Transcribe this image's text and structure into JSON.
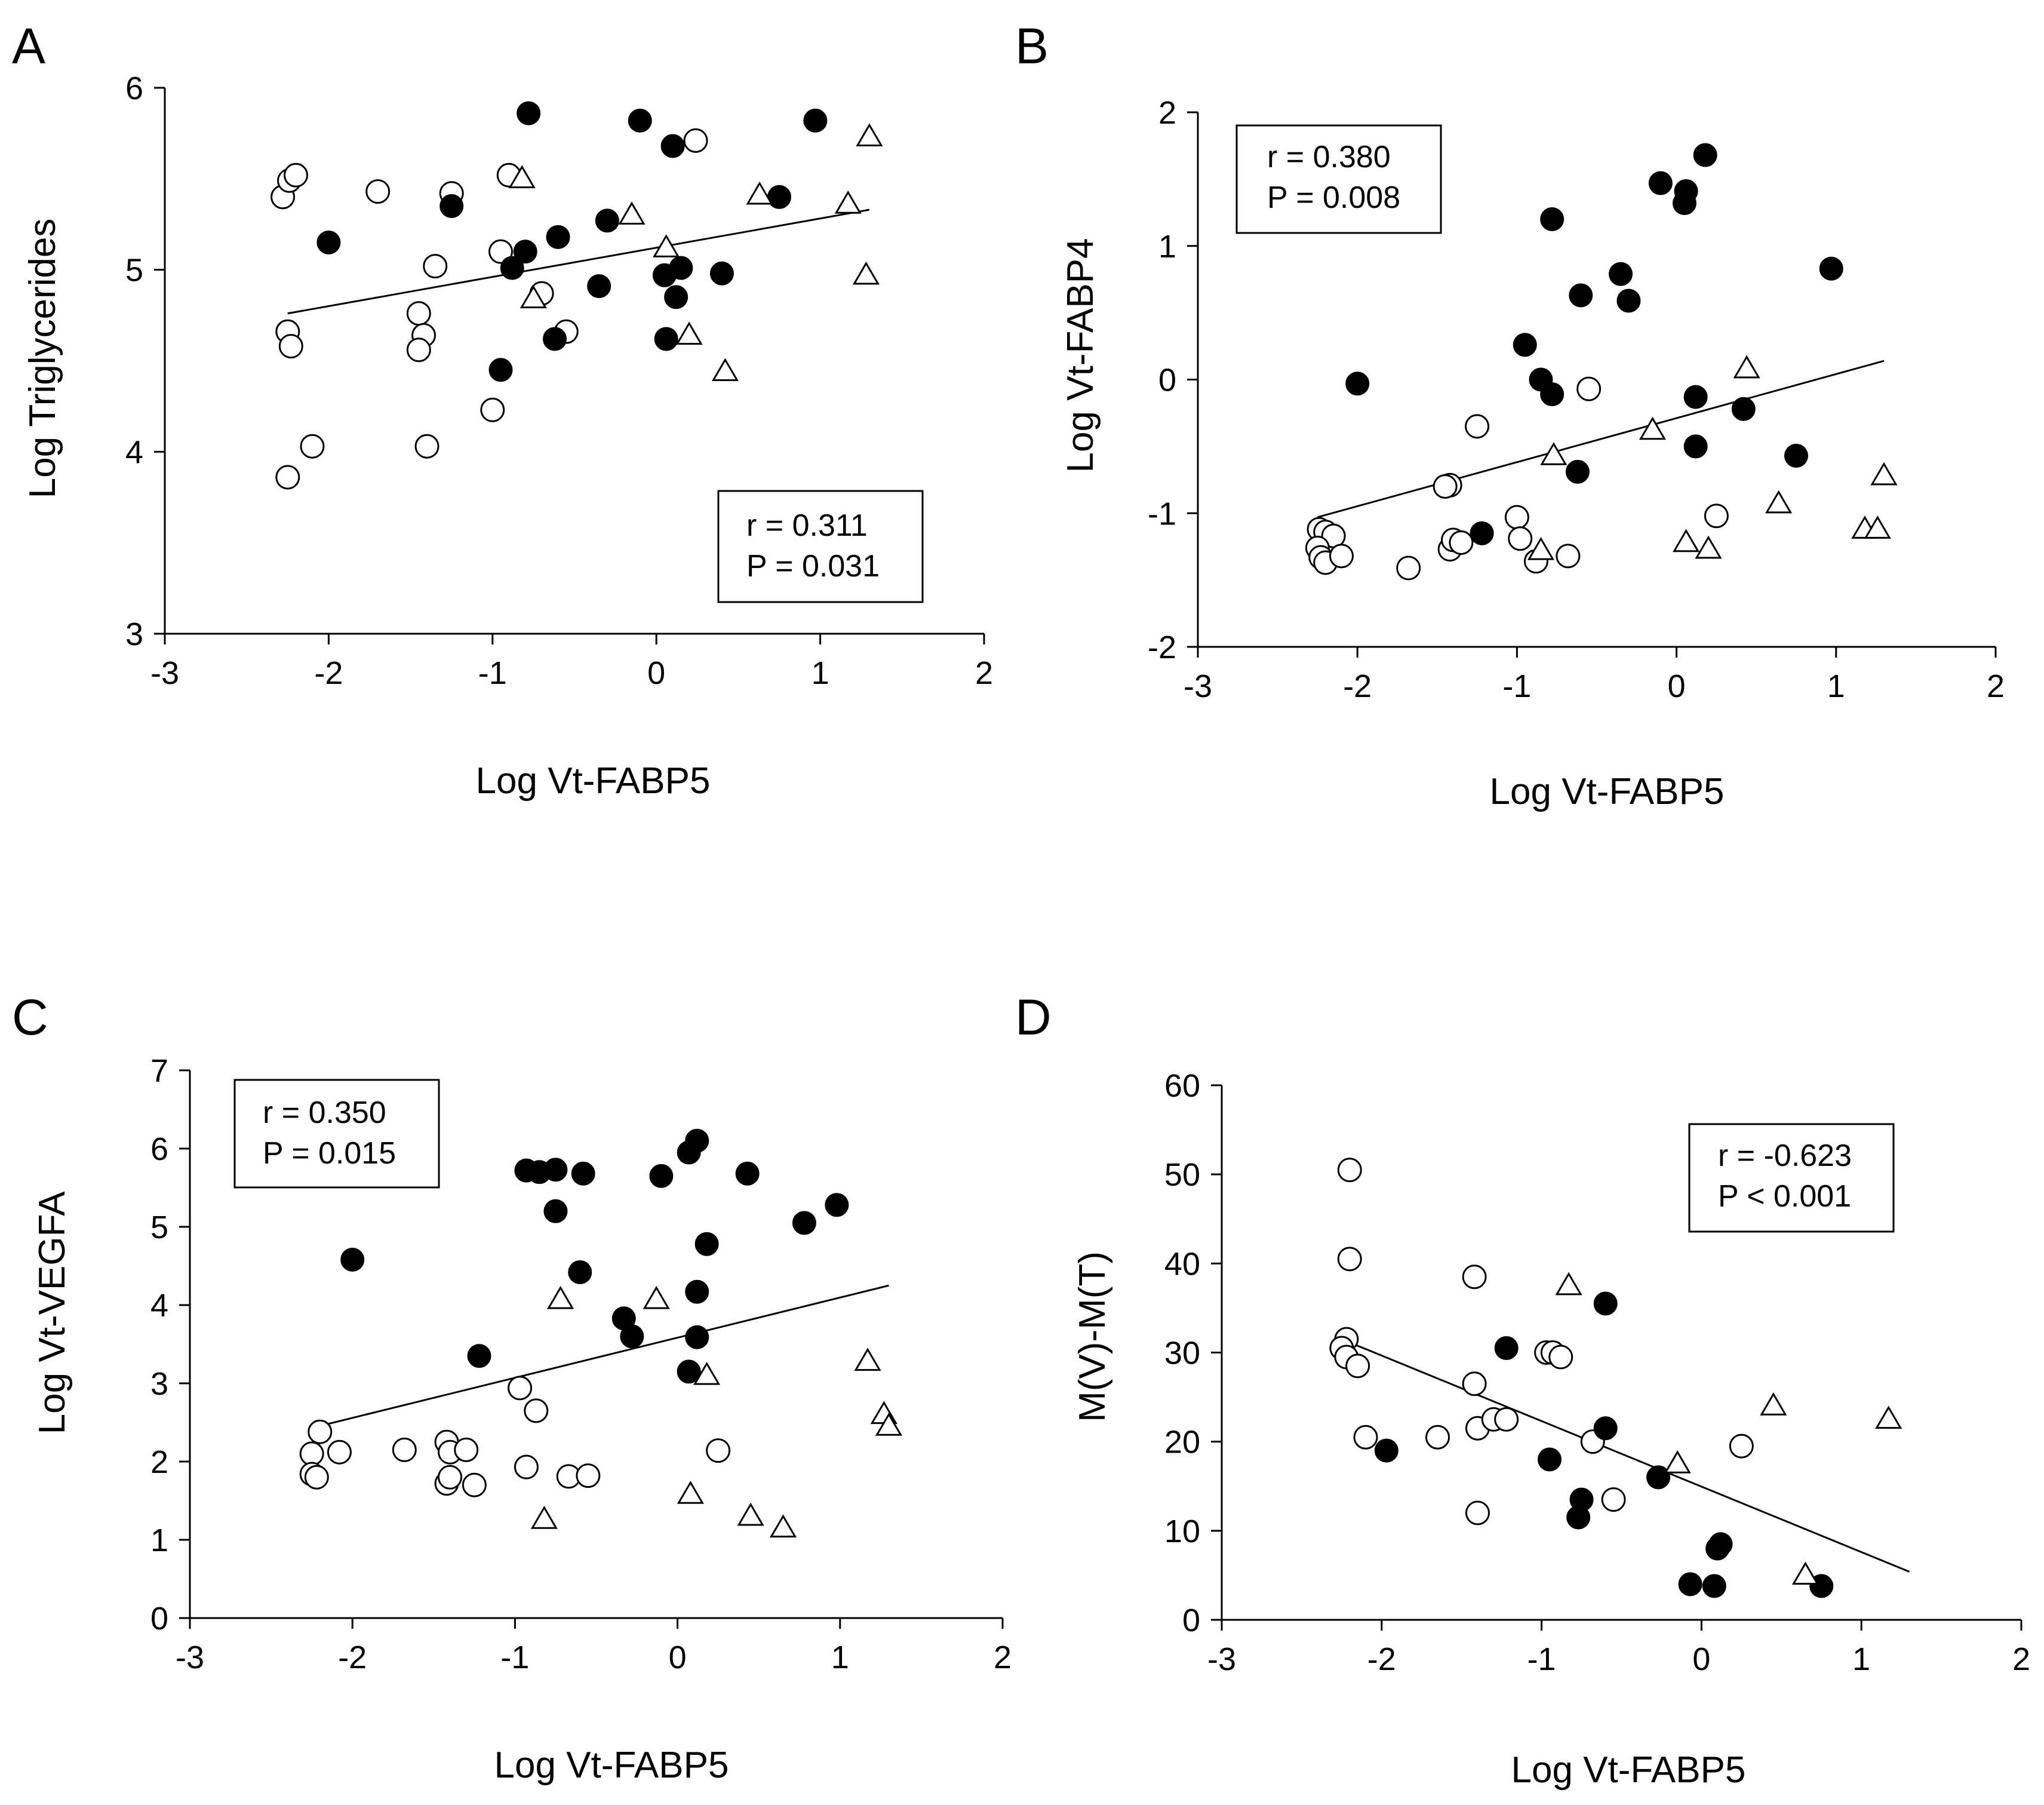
{
  "chart_data": [
    {
      "panel": "A",
      "type": "scatter",
      "xlabel": "Log Vt-FABP5",
      "ylabel": "Log Triglycerides",
      "xlim": [
        -3,
        2
      ],
      "ylim": [
        3,
        6
      ],
      "xticks": [
        -3,
        -2,
        -1,
        0,
        1,
        2
      ],
      "yticks": [
        3,
        4,
        5,
        6
      ],
      "stats": {
        "r": "r = 0.311",
        "p": "P = 0.031",
        "position": "bottom-right"
      },
      "fit": {
        "x": [
          -2.25,
          1.3
        ],
        "y": [
          4.76,
          5.33
        ]
      },
      "series": [
        {
          "name": "open-circle",
          "points": [
            [
              -2.28,
              5.4
            ],
            [
              -2.24,
              5.49
            ],
            [
              -2.2,
              5.52
            ],
            [
              -2.25,
              4.66
            ],
            [
              -2.23,
              4.58
            ],
            [
              -2.1,
              4.03
            ],
            [
              -2.25,
              3.86
            ],
            [
              -1.7,
              5.43
            ],
            [
              -1.45,
              4.76
            ],
            [
              -1.42,
              4.64
            ],
            [
              -1.45,
              4.56
            ],
            [
              -1.35,
              5.02
            ],
            [
              -1.25,
              5.42
            ],
            [
              -1.4,
              4.03
            ],
            [
              -1.0,
              4.23
            ],
            [
              -0.95,
              5.1
            ],
            [
              -0.9,
              5.52
            ],
            [
              -0.7,
              4.87
            ],
            [
              -0.55,
              4.66
            ],
            [
              0.24,
              5.71
            ]
          ]
        },
        {
          "name": "filled-circle",
          "points": [
            [
              -2.0,
              5.15
            ],
            [
              -1.25,
              5.35
            ],
            [
              -0.78,
              5.86
            ],
            [
              -0.8,
              5.1
            ],
            [
              -0.88,
              5.01
            ],
            [
              -0.95,
              4.45
            ],
            [
              -0.6,
              5.18
            ],
            [
              -0.62,
              4.62
            ],
            [
              -0.3,
              5.27
            ],
            [
              -0.35,
              4.91
            ],
            [
              -0.1,
              5.82
            ],
            [
              0.1,
              5.68
            ],
            [
              0.05,
              4.97
            ],
            [
              0.15,
              5.01
            ],
            [
              0.12,
              4.85
            ],
            [
              0.06,
              4.62
            ],
            [
              0.4,
              4.98
            ],
            [
              0.75,
              5.4
            ],
            [
              0.97,
              5.82
            ]
          ]
        },
        {
          "name": "open-triangle",
          "points": [
            [
              -0.82,
              5.5
            ],
            [
              -0.75,
              4.84
            ],
            [
              -0.15,
              5.3
            ],
            [
              0.06,
              5.12
            ],
            [
              0.2,
              4.64
            ],
            [
              0.42,
              4.44
            ],
            [
              0.63,
              5.41
            ],
            [
              1.17,
              5.36
            ],
            [
              1.28,
              4.97
            ],
            [
              1.3,
              5.73
            ]
          ]
        }
      ]
    },
    {
      "panel": "B",
      "type": "scatter",
      "xlabel": "Log Vt-FABP5",
      "ylabel": "Log Vt-FABP4",
      "xlim": [
        -3,
        2
      ],
      "ylim": [
        -2,
        2
      ],
      "xticks": [
        -3,
        -2,
        -1,
        0,
        1,
        2
      ],
      "yticks": [
        -2,
        -1,
        0,
        1,
        2
      ],
      "stats": {
        "r": "r = 0.380",
        "p": "P = 0.008",
        "position": "top-left"
      },
      "fit": {
        "x": [
          -2.25,
          1.3
        ],
        "y": [
          -1.03,
          0.14
        ]
      },
      "series": [
        {
          "name": "open-circle",
          "points": [
            [
              -2.24,
              -1.12
            ],
            [
              -2.2,
              -1.14
            ],
            [
              -2.15,
              -1.17
            ],
            [
              -2.25,
              -1.26
            ],
            [
              -2.23,
              -1.33
            ],
            [
              -2.2,
              -1.37
            ],
            [
              -2.1,
              -1.32
            ],
            [
              -1.68,
              -1.41
            ],
            [
              -1.42,
              -0.79
            ],
            [
              -1.45,
              -0.8
            ],
            [
              -1.42,
              -1.27
            ],
            [
              -1.4,
              -1.2
            ],
            [
              -1.35,
              -1.22
            ],
            [
              -1.25,
              -0.35
            ],
            [
              -1.0,
              -1.03
            ],
            [
              -0.98,
              -1.19
            ],
            [
              -0.88,
              -1.36
            ],
            [
              -0.68,
              -1.32
            ],
            [
              -0.55,
              -0.07
            ],
            [
              0.25,
              -1.02
            ]
          ]
        },
        {
          "name": "filled-circle",
          "points": [
            [
              -2.0,
              -0.03
            ],
            [
              -1.22,
              -1.15
            ],
            [
              -0.95,
              0.26
            ],
            [
              -0.85,
              0.0
            ],
            [
              -0.78,
              -0.11
            ],
            [
              -0.78,
              1.2
            ],
            [
              -0.6,
              0.63
            ],
            [
              -0.62,
              -0.69
            ],
            [
              -0.35,
              0.79
            ],
            [
              -0.3,
              0.59
            ],
            [
              -0.1,
              1.47
            ],
            [
              0.05,
              1.32
            ],
            [
              0.06,
              1.41
            ],
            [
              0.18,
              1.68
            ],
            [
              0.12,
              -0.13
            ],
            [
              0.12,
              -0.5
            ],
            [
              0.42,
              -0.22
            ],
            [
              0.75,
              -0.57
            ],
            [
              0.97,
              0.83
            ]
          ]
        },
        {
          "name": "open-triangle",
          "points": [
            [
              -0.85,
              -1.28
            ],
            [
              -0.77,
              -0.57
            ],
            [
              -0.15,
              -0.38
            ],
            [
              0.06,
              -1.22
            ],
            [
              0.2,
              -1.27
            ],
            [
              0.44,
              0.08
            ],
            [
              0.64,
              -0.93
            ],
            [
              1.18,
              -1.12
            ],
            [
              1.26,
              -1.12
            ],
            [
              1.3,
              -0.72
            ]
          ]
        }
      ]
    },
    {
      "panel": "C",
      "type": "scatter",
      "xlabel": "Log Vt-FABP5",
      "ylabel": "Log Vt-VEGFA",
      "xlim": [
        -3,
        2
      ],
      "ylim": [
        0,
        7
      ],
      "xticks": [
        -3,
        -2,
        -1,
        0,
        1,
        2
      ],
      "yticks": [
        0,
        1,
        2,
        3,
        4,
        5,
        6,
        7
      ],
      "stats": {
        "r": "r = 0.350",
        "p": "P = 0.015",
        "position": "top-left"
      },
      "fit": {
        "x": [
          -2.25,
          1.3
        ],
        "y": [
          2.43,
          4.25
        ]
      },
      "series": [
        {
          "name": "open-circle",
          "points": [
            [
              -2.2,
              2.38
            ],
            [
              -2.25,
              2.1
            ],
            [
              -2.08,
              2.12
            ],
            [
              -2.25,
              1.84
            ],
            [
              -2.22,
              1.8
            ],
            [
              -1.68,
              2.15
            ],
            [
              -1.42,
              2.25
            ],
            [
              -1.4,
              2.12
            ],
            [
              -1.3,
              2.15
            ],
            [
              -1.42,
              1.72
            ],
            [
              -1.4,
              1.8
            ],
            [
              -1.25,
              1.7
            ],
            [
              -0.97,
              2.94
            ],
            [
              -0.87,
              2.65
            ],
            [
              -0.93,
              1.93
            ],
            [
              -0.67,
              1.81
            ],
            [
              -0.55,
              1.82
            ],
            [
              0.25,
              2.14
            ]
          ]
        },
        {
          "name": "filled-circle",
          "points": [
            [
              -2.0,
              4.58
            ],
            [
              -1.22,
              3.35
            ],
            [
              -0.93,
              5.72
            ],
            [
              -0.85,
              5.7
            ],
            [
              -0.75,
              5.73
            ],
            [
              -0.75,
              5.2
            ],
            [
              -0.58,
              5.68
            ],
            [
              -0.6,
              4.42
            ],
            [
              -0.33,
              3.83
            ],
            [
              -0.28,
              3.6
            ],
            [
              -0.1,
              5.65
            ],
            [
              0.07,
              5.95
            ],
            [
              0.12,
              6.1
            ],
            [
              0.18,
              4.78
            ],
            [
              0.12,
              4.17
            ],
            [
              0.12,
              3.59
            ],
            [
              0.07,
              3.15
            ],
            [
              0.43,
              5.68
            ],
            [
              0.78,
              5.05
            ],
            [
              0.98,
              5.28
            ]
          ]
        },
        {
          "name": "open-triangle",
          "points": [
            [
              -0.72,
              4.07
            ],
            [
              -0.82,
              1.26
            ],
            [
              -0.13,
              4.07
            ],
            [
              0.08,
              1.58
            ],
            [
              0.18,
              3.1
            ],
            [
              0.45,
              1.3
            ],
            [
              0.65,
              1.15
            ],
            [
              1.17,
              3.28
            ],
            [
              1.27,
              2.6
            ],
            [
              1.3,
              2.45
            ]
          ]
        }
      ]
    },
    {
      "panel": "D",
      "type": "scatter",
      "xlabel": "Log Vt-FABP5",
      "ylabel": "M(V)-M(T)",
      "xlim": [
        -3,
        2
      ],
      "ylim": [
        0,
        60
      ],
      "xticks": [
        -3,
        -2,
        -1,
        0,
        1,
        2
      ],
      "yticks": [
        0,
        10,
        20,
        30,
        40,
        50,
        60
      ],
      "stats": {
        "r": "r = -0.623",
        "p": "P < 0.001",
        "position": "top-right"
      },
      "fit": {
        "x": [
          -2.25,
          1.3
        ],
        "y": [
          31.5,
          5.4
        ]
      },
      "series": [
        {
          "name": "open-circle",
          "points": [
            [
              -2.2,
              50.5
            ],
            [
              -2.2,
              40.5
            ],
            [
              -2.22,
              31.5
            ],
            [
              -2.25,
              30.5
            ],
            [
              -2.22,
              29.5
            ],
            [
              -2.15,
              28.5
            ],
            [
              -2.1,
              20.5
            ],
            [
              -1.65,
              20.5
            ],
            [
              -1.42,
              38.5
            ],
            [
              -1.42,
              26.5
            ],
            [
              -1.4,
              21.5
            ],
            [
              -1.3,
              22.5
            ],
            [
              -1.22,
              22.5
            ],
            [
              -1.4,
              12.0
            ],
            [
              -0.97,
              30.0
            ],
            [
              -0.93,
              30.0
            ],
            [
              -0.88,
              29.5
            ],
            [
              -0.68,
              20.0
            ],
            [
              -0.55,
              13.5
            ],
            [
              0.25,
              19.5
            ]
          ]
        },
        {
          "name": "filled-circle",
          "points": [
            [
              -1.97,
              19.0
            ],
            [
              -1.22,
              30.5
            ],
            [
              -0.95,
              18.0
            ],
            [
              -0.75,
              13.5
            ],
            [
              -0.77,
              11.5
            ],
            [
              -0.6,
              35.5
            ],
            [
              -0.6,
              21.5
            ],
            [
              -0.27,
              16.0
            ],
            [
              -0.07,
              4.0
            ],
            [
              0.12,
              8.5
            ],
            [
              0.08,
              3.8
            ],
            [
              0.1,
              8.0
            ],
            [
              0.75,
              3.8
            ]
          ]
        },
        {
          "name": "open-triangle",
          "points": [
            [
              -0.83,
              37.5
            ],
            [
              -0.15,
              17.5
            ],
            [
              0.45,
              24.0
            ],
            [
              0.65,
              5.0
            ],
            [
              1.17,
              22.5
            ]
          ]
        }
      ]
    }
  ]
}
